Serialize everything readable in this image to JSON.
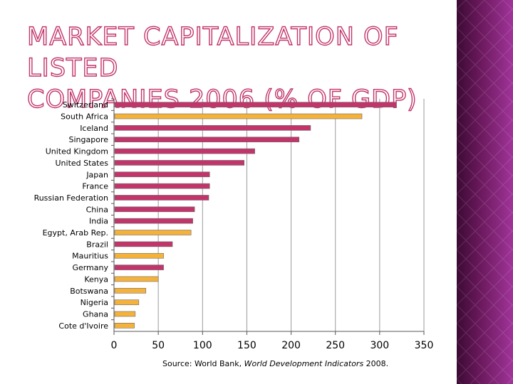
{
  "slide": {
    "title_line1": "Market Capitalization of Listed",
    "title_line2": "Companies 2006 (% of GDP)",
    "source_prefix": "Source: World Bank, ",
    "source_publication": "World Development Indicators",
    "source_suffix": " 2008."
  },
  "colors": {
    "bar_primary": "#c2356b",
    "bar_highlight": "#f5b23a",
    "title_outline": "#c2356b",
    "panel_dark": "#3b0a33",
    "panel_light": "#a0349a"
  },
  "chart_data": {
    "type": "bar",
    "orientation": "horizontal",
    "title": "Market Capitalization of Listed Companies 2006 (% of GDP)",
    "xlabel": "",
    "ylabel": "",
    "xlim": [
      0,
      350
    ],
    "xticks": [
      0,
      50,
      100,
      150,
      200,
      250,
      300,
      350
    ],
    "grid": true,
    "categories": [
      "Switzerland",
      "South Africa",
      "Iceland",
      "Singapore",
      "United Kingdom",
      "United States",
      "Japan",
      "France",
      "Russian Federation",
      "China",
      "India",
      "Egypt, Arab Rep.",
      "Brazil",
      "Mauritius",
      "Germany",
      "Kenya",
      "Botswana",
      "Nigeria",
      "Ghana",
      "Cote d'Ivoire"
    ],
    "values": [
      319,
      280,
      222,
      209,
      159,
      147,
      108,
      108,
      107,
      91,
      89,
      87,
      66,
      56,
      56,
      50,
      36,
      28,
      24,
      23
    ],
    "highlight": [
      false,
      true,
      false,
      false,
      false,
      false,
      false,
      false,
      false,
      false,
      false,
      true,
      false,
      true,
      false,
      true,
      true,
      true,
      true,
      true
    ]
  }
}
